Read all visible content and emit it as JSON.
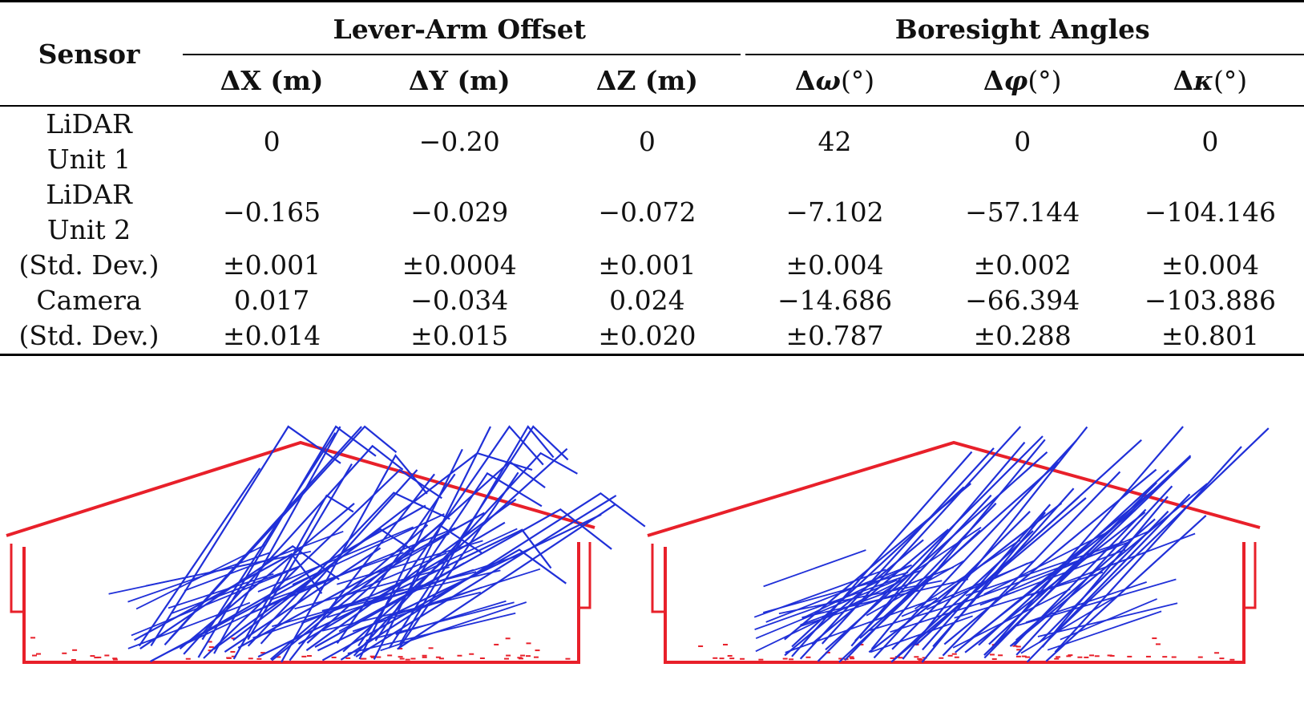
{
  "table": {
    "header": {
      "sensor": "Sensor",
      "group_lever": "Lever-Arm Offset",
      "group_boresight": "Boresight Angles",
      "columns": [
        "ΔX (m)",
        "ΔY (m)",
        "ΔZ (m)",
        "Δω(°)",
        "Δφ(°)",
        "Δκ(°)"
      ]
    },
    "rows": [
      {
        "sensor_line1": "LiDAR",
        "sensor_line2": "Unit 1",
        "values": [
          "0",
          "−0.20",
          "0",
          "42",
          "0",
          "0"
        ]
      },
      {
        "sensor_line1": "LiDAR",
        "sensor_line2": "Unit 2",
        "values": [
          "−0.165",
          "−0.029",
          "−0.072",
          "−7.102",
          "−57.144",
          "−104.146"
        ]
      },
      {
        "sensor": "(Std. Dev.)",
        "values": [
          "±0.001",
          "±0.0004",
          "±0.001",
          "±0.004",
          "±0.002",
          "±0.004"
        ]
      },
      {
        "sensor": "Camera",
        "values": [
          "0.017",
          "−0.034",
          "0.024",
          "−14.686",
          "−66.394",
          "−103.886"
        ]
      },
      {
        "sensor": "(Std. Dev.)",
        "values": [
          "±0.014",
          "±0.015",
          "±0.020",
          "±0.787",
          "±0.288",
          "±0.801"
        ]
      }
    ]
  },
  "figure": {
    "colors": {
      "building_outline": "#e8202a",
      "lidar_scan": "#2030d8"
    }
  }
}
